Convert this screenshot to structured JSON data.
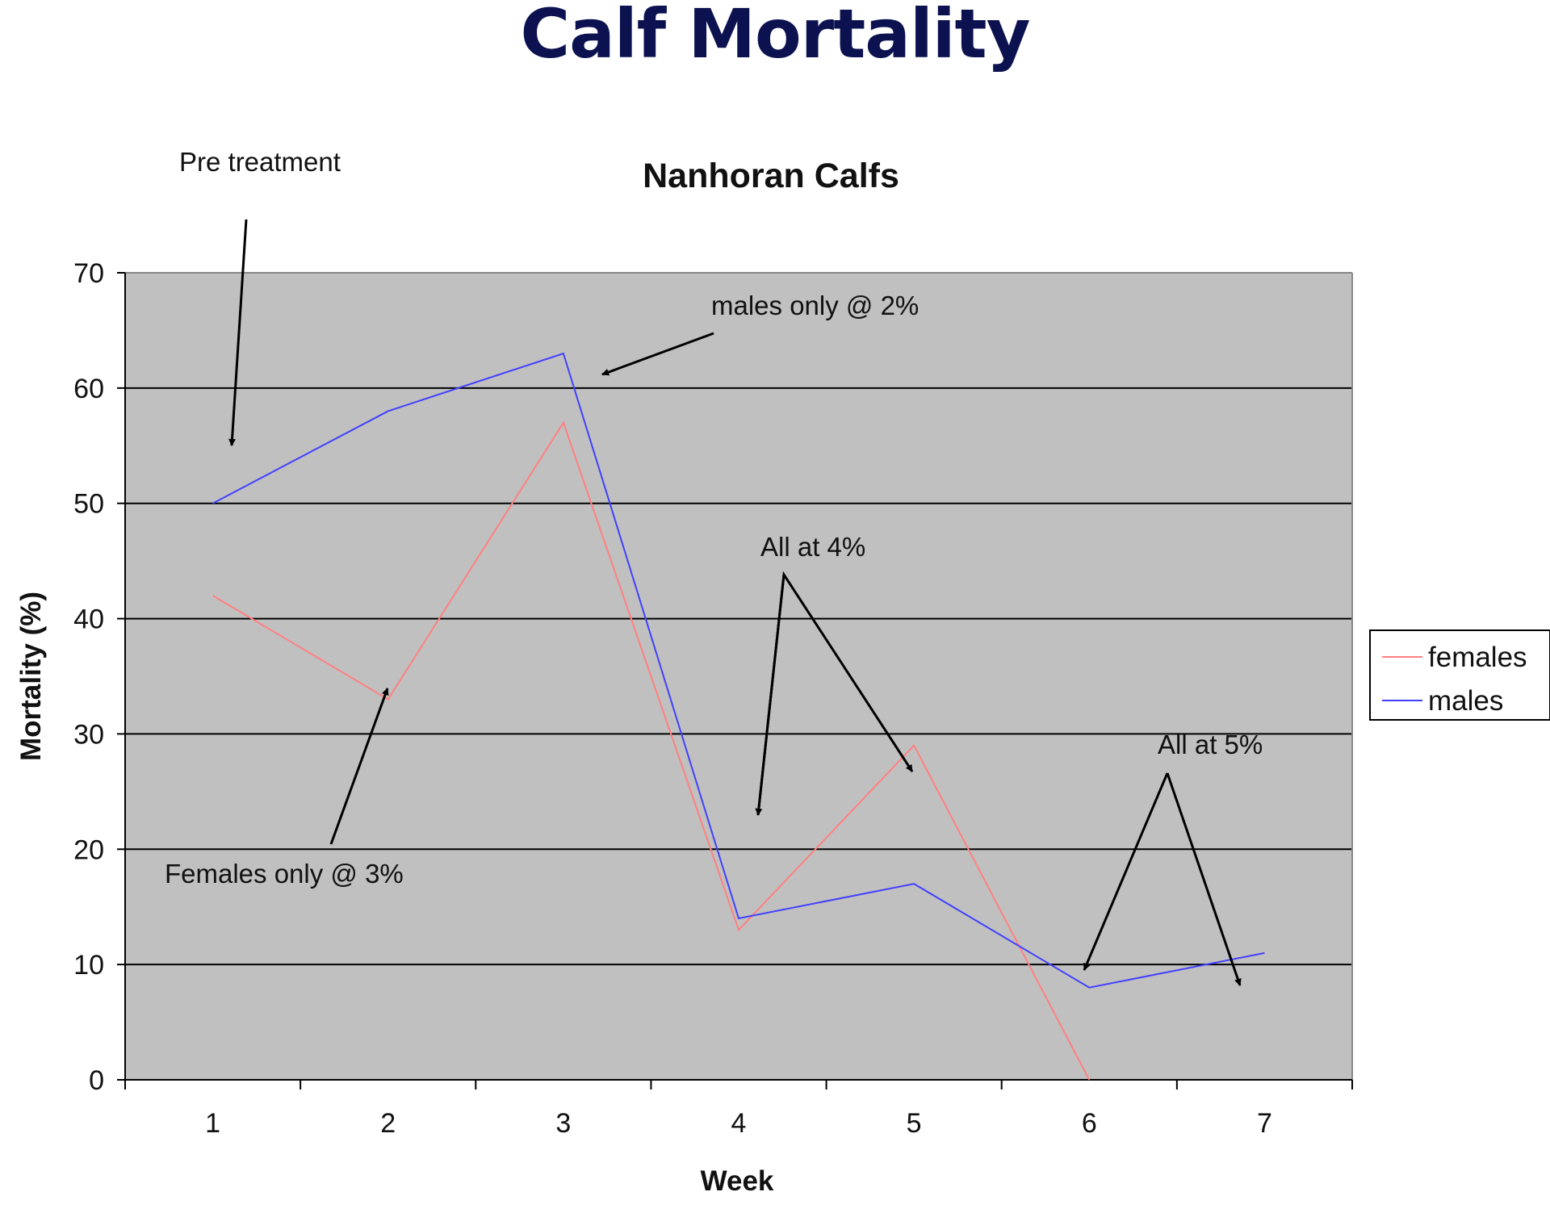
{
  "page": {
    "title": "Calf Mortality",
    "title_color": "#0c1250"
  },
  "chart_data": {
    "type": "line",
    "title": "Nanhoran Calfs",
    "xlabel": "Week",
    "ylabel": "Mortality (%)",
    "categories": [
      "1",
      "2",
      "3",
      "4",
      "5",
      "6",
      "7"
    ],
    "ylim": [
      0,
      70
    ],
    "yticks": [
      "0",
      "10",
      "20",
      "30",
      "40",
      "50",
      "60",
      "70"
    ],
    "grid": true,
    "plot_background": "#c0c0c0",
    "legend_position": "right",
    "series": [
      {
        "name": "females",
        "color": "#ff8080",
        "values": [
          42,
          33,
          57,
          13,
          29,
          0,
          null
        ]
      },
      {
        "name": "males",
        "color": "#4040ff",
        "values": [
          50,
          58,
          63,
          14,
          17,
          8,
          11
        ]
      }
    ],
    "annotations": [
      {
        "text": "Pre treatment"
      },
      {
        "text": "males only @ 2%"
      },
      {
        "text": "Females only @ 3%"
      },
      {
        "text": "All at 4%"
      },
      {
        "text": "All at 5%"
      }
    ]
  }
}
